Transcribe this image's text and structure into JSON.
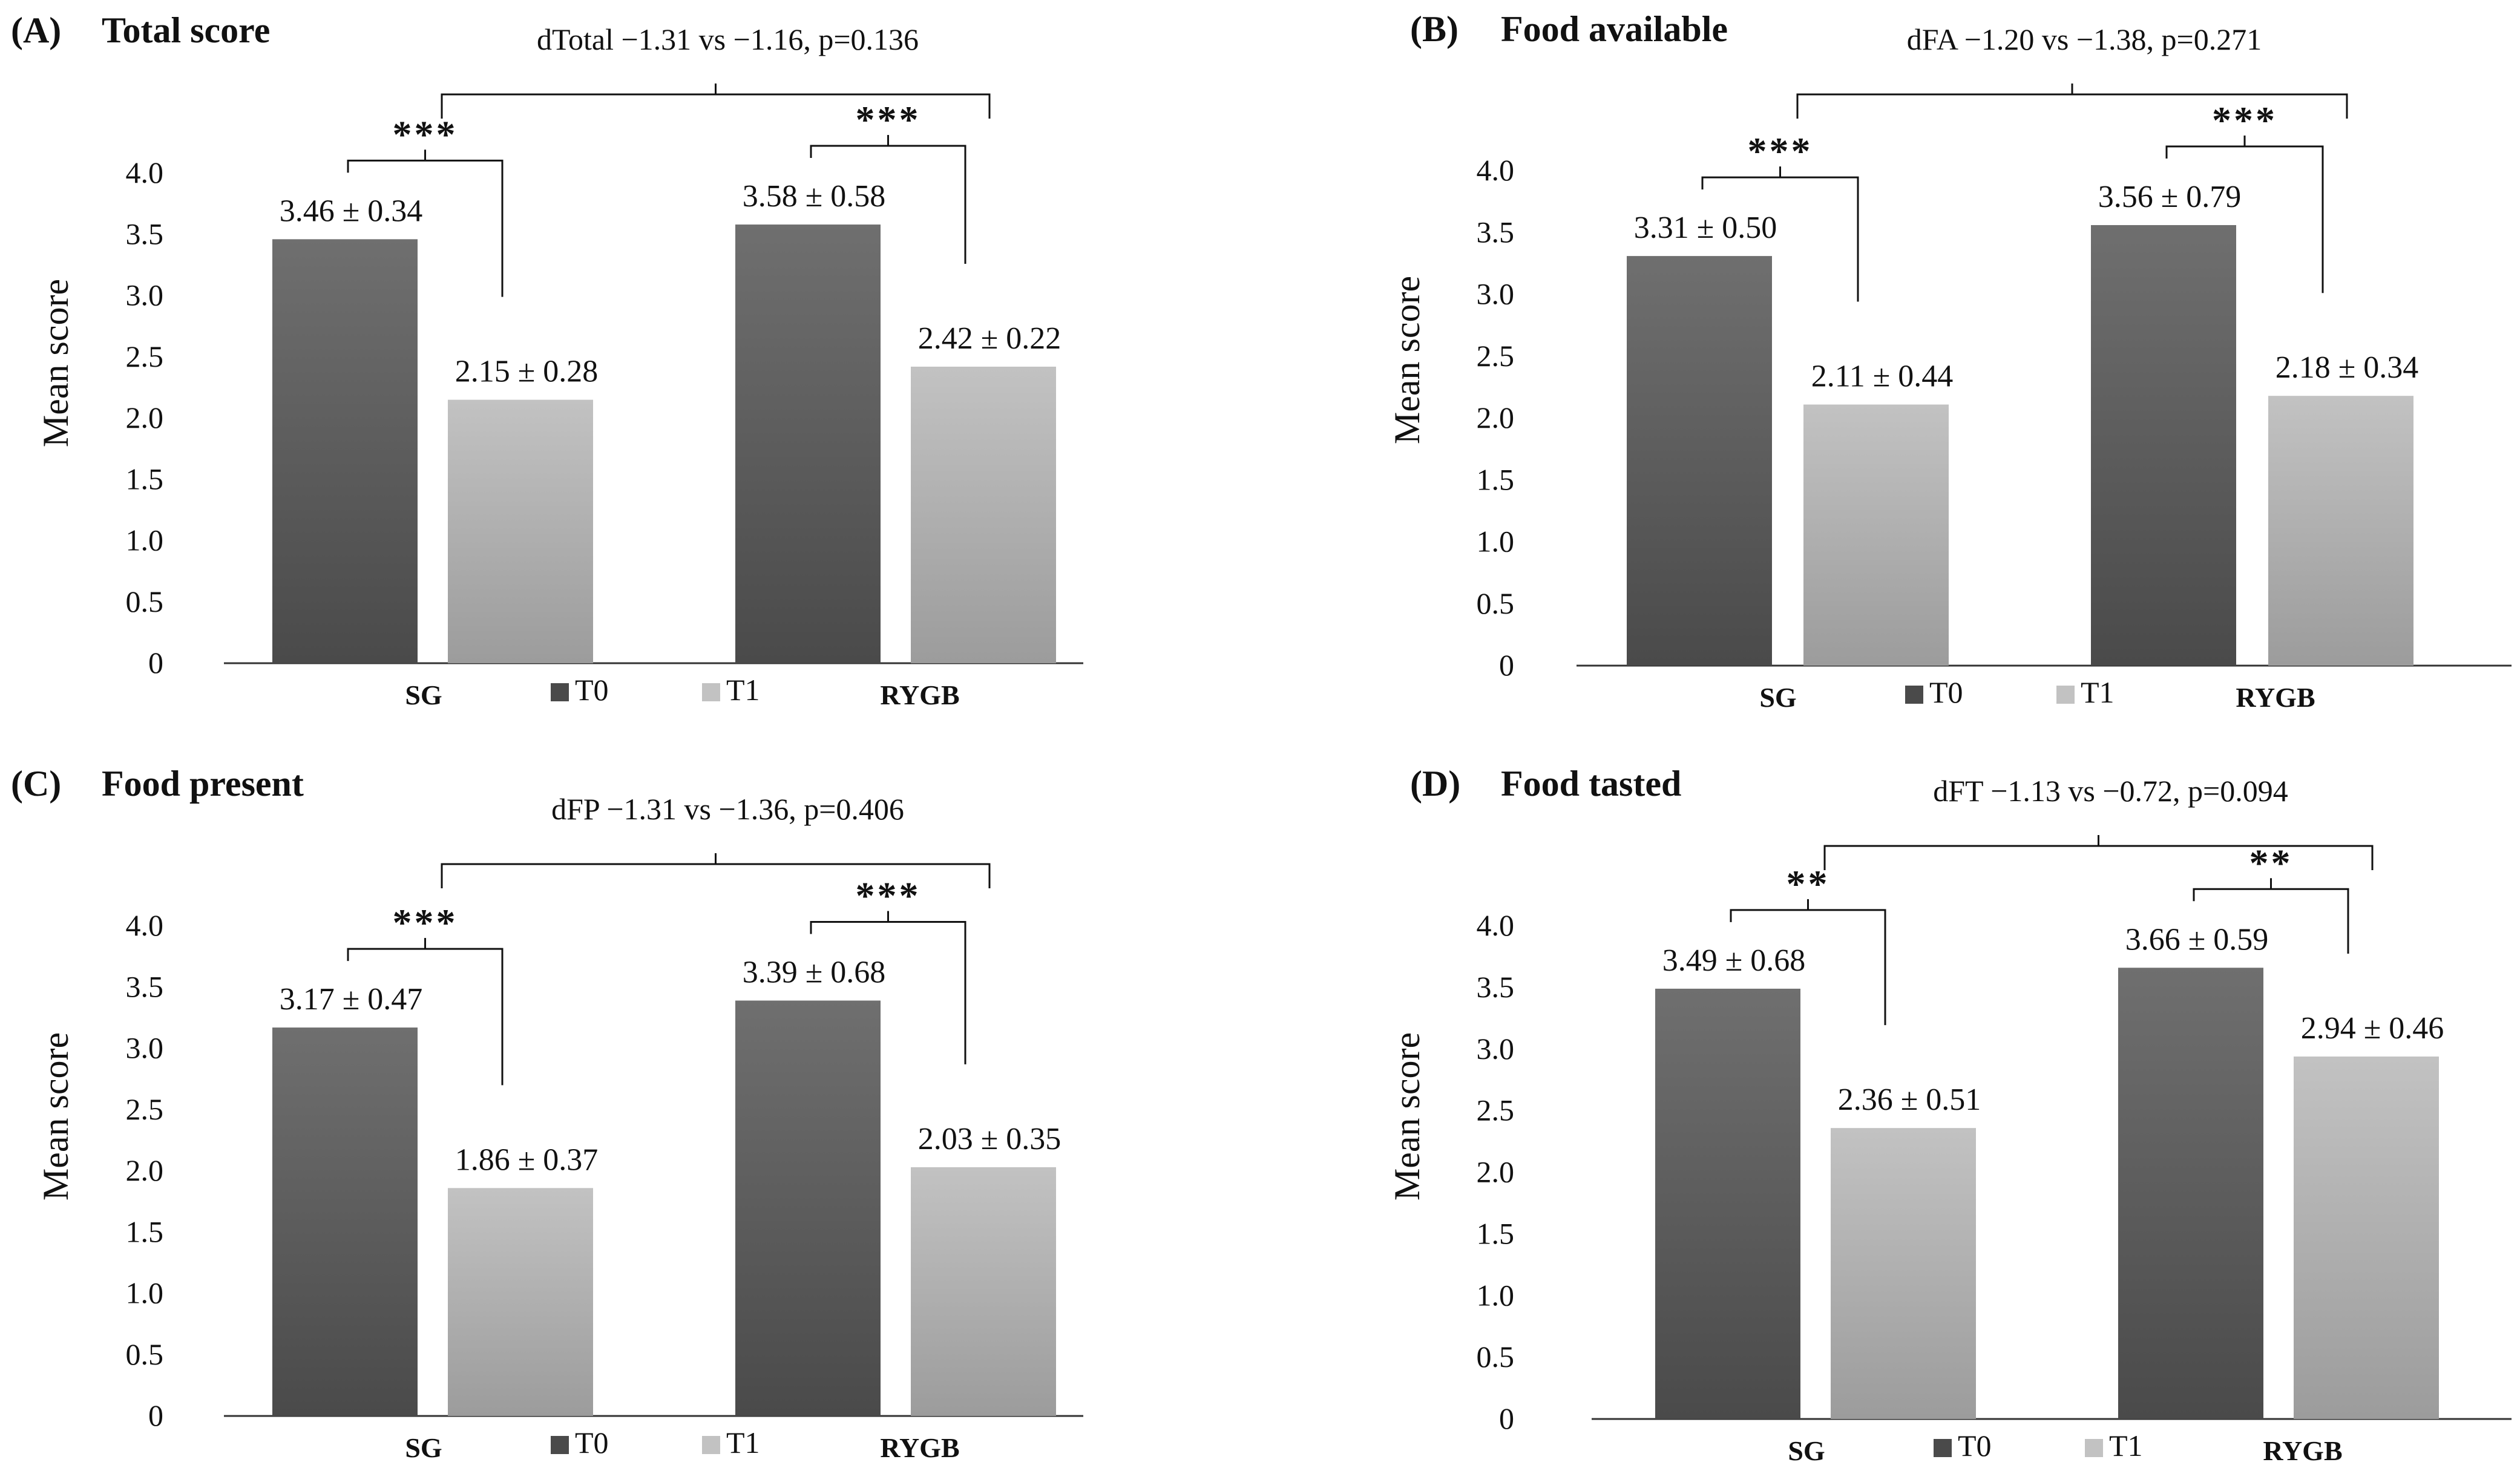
{
  "legend_labels": [
    "T0",
    "T1"
  ],
  "colors": {
    "t0_top": "#6f6f6f",
    "t0_bottom": "#4a4a4a",
    "t1_top": "#c2c2c2",
    "t1_bottom": "#9c9c9c",
    "bracket": "#111111",
    "axis": "#333333"
  },
  "chart_data": [
    {
      "type": "bar",
      "panel": "(A)",
      "title": "Total score",
      "ylabel": "Mean score",
      "ylim": [
        0,
        4.0
      ],
      "yticks": [
        "0",
        "0.5",
        "1.0",
        "1.5",
        "2.0",
        "2.5",
        "3.0",
        "3.5",
        "4.0"
      ],
      "categories": [
        "SG",
        "RYGB"
      ],
      "series": [
        {
          "name": "T0",
          "values": [
            3.46,
            3.58
          ],
          "labels": [
            "3.46 ± 0.34",
            "3.58 ± 0.58"
          ]
        },
        {
          "name": "T1",
          "values": [
            2.15,
            2.42
          ],
          "labels": [
            "2.15 ± 0.28",
            "2.42 ± 0.22"
          ]
        }
      ],
      "within_group_significance": [
        "***",
        "***"
      ],
      "between_group_comparison": "dTotal −1.31 vs −1.16, p=0.136"
    },
    {
      "type": "bar",
      "panel": "(B)",
      "title": "Food available",
      "ylabel": "Mean score",
      "ylim": [
        0,
        4.0
      ],
      "yticks": [
        "0",
        "0.5",
        "1.0",
        "1.5",
        "2.0",
        "2.5",
        "3.0",
        "3.5",
        "4.0"
      ],
      "categories": [
        "SG",
        "RYGB"
      ],
      "series": [
        {
          "name": "T0",
          "values": [
            3.31,
            3.56
          ],
          "labels": [
            "3.31 ± 0.50",
            "3.56 ± 0.79"
          ]
        },
        {
          "name": "T1",
          "values": [
            2.11,
            2.18
          ],
          "labels": [
            "2.11 ± 0.44",
            "2.18 ± 0.34"
          ]
        }
      ],
      "within_group_significance": [
        "***",
        "***"
      ],
      "between_group_comparison": "dFA −1.20 vs −1.38, p=0.271"
    },
    {
      "type": "bar",
      "panel": "(C)",
      "title": "Food present",
      "ylabel": "Mean score",
      "ylim": [
        0,
        4.0
      ],
      "yticks": [
        "0",
        "0.5",
        "1.0",
        "1.5",
        "2.0",
        "2.5",
        "3.0",
        "3.5",
        "4.0"
      ],
      "categories": [
        "SG",
        "RYGB"
      ],
      "series": [
        {
          "name": "T0",
          "values": [
            3.17,
            3.39
          ],
          "labels": [
            "3.17 ± 0.47",
            "3.39 ± 0.68"
          ]
        },
        {
          "name": "T1",
          "values": [
            1.86,
            2.03
          ],
          "labels": [
            "1.86 ± 0.37",
            "2.03 ± 0.35"
          ]
        }
      ],
      "within_group_significance": [
        "***",
        "***"
      ],
      "between_group_comparison": "dFP −1.31 vs −1.36, p=0.406"
    },
    {
      "type": "bar",
      "panel": "(D)",
      "title": "Food tasted",
      "ylabel": "Mean score",
      "ylim": [
        0,
        4.0
      ],
      "yticks": [
        "0",
        "0.5",
        "1.0",
        "1.5",
        "2.0",
        "2.5",
        "3.0",
        "3.5",
        "4.0"
      ],
      "categories": [
        "SG",
        "RYGB"
      ],
      "series": [
        {
          "name": "T0",
          "values": [
            3.49,
            3.66
          ],
          "labels": [
            "3.49 ± 0.68",
            "3.66 ± 0.59"
          ]
        },
        {
          "name": "T1",
          "values": [
            2.36,
            2.94
          ],
          "labels": [
            "2.36 ± 0.51",
            "2.94 ± 0.46"
          ]
        }
      ],
      "within_group_significance": [
        "**",
        "**"
      ],
      "between_group_comparison": "dFT −1.13 vs −0.72, p=0.094"
    }
  ]
}
